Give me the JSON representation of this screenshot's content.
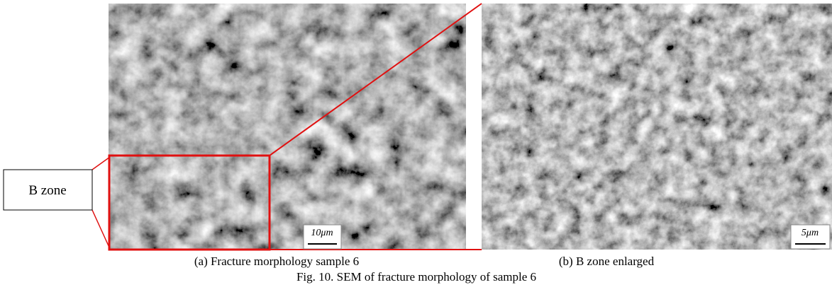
{
  "figure": {
    "zone_label": "B zone",
    "scale_bar_a": "10μm",
    "scale_bar_b": "5μm",
    "caption_a": "(a) Fracture morphology sample 6",
    "caption_b": "(b) B zone enlarged",
    "figure_caption": "Fig. 10. SEM of fracture morphology of sample 6"
  }
}
